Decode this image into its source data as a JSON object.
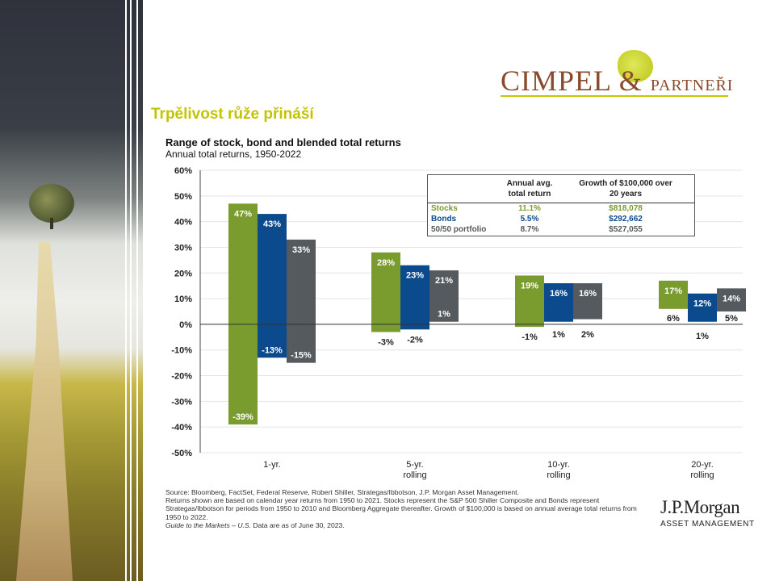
{
  "logo": {
    "brand_main": "CIMPEL",
    "brand_amp": "&",
    "brand_rest": "PARTNEŘI"
  },
  "heading": "Trpělivost růže přináší",
  "table": {
    "headers": [
      "",
      "Annual avg. total return",
      "Growth of $100,000 over 20 years"
    ],
    "header1_lines": [
      "Annual avg.",
      "total return"
    ],
    "header2_lines": [
      "Growth of $100,000 over",
      "20 years"
    ],
    "rows": [
      {
        "label": "Stocks",
        "avg": "11.1%",
        "growth": "$818,078",
        "color": "#7a9b2e"
      },
      {
        "label": "Bonds",
        "avg": "5.5%",
        "growth": "$292,662",
        "color": "#0b4a8c"
      },
      {
        "label": "50/50 portfolio",
        "avg": "8.7%",
        "growth": "$527,055",
        "color": "#555a5e"
      }
    ]
  },
  "footnote": {
    "line1": "Source: Bloomberg, FactSet, Federal Reserve, Robert Shiller, Strategas/Ibbotson, J.P. Morgan Asset Management.",
    "line2": "Returns shown are based on calendar year returns from 1950 to 2021. Stocks represent the S&P 500 Shiller Composite and Bonds represent Strategas/Ibbotson for periods from 1950 to 2010 and Bloomberg Aggregate thereafter. Growth of $100,000 is based on annual average total returns from 1950 to 2022.",
    "guide_italic": "Guide to the Markets – U.S.",
    "guide_rest": " Data are as of June 30, 2023."
  },
  "jpmorgan": {
    "name": "J.P.Morgan",
    "sub": "ASSET MANAGEMENT"
  },
  "chart_data": {
    "type": "bar",
    "subtype": "floating-range",
    "title": "Range of stock, bond and blended total returns",
    "subtitle": "Annual total returns, 1950-2022",
    "categories": [
      [
        "1-yr."
      ],
      [
        "5-yr.",
        "rolling"
      ],
      [
        "10-yr.",
        "rolling"
      ],
      [
        "20-yr.",
        "rolling"
      ]
    ],
    "series": [
      {
        "name": "Stocks",
        "color": "#7a9b2e",
        "max": [
          47,
          28,
          19,
          17
        ],
        "min": [
          -39,
          -3,
          -1,
          6
        ],
        "max_labels": [
          "47%",
          "28%",
          "19%",
          "17%"
        ],
        "min_labels": [
          "-39%",
          "-3%",
          "-1%",
          "6%"
        ]
      },
      {
        "name": "Bonds",
        "color": "#0b4a8c",
        "max": [
          43,
          23,
          16,
          12
        ],
        "min": [
          -13,
          -2,
          1,
          1
        ],
        "max_labels": [
          "43%",
          "23%",
          "16%",
          "12%"
        ],
        "min_labels": [
          "-13%",
          "-2%",
          "1%",
          "1%"
        ]
      },
      {
        "name": "50/50 portfolio",
        "color": "#555a5e",
        "max": [
          33,
          21,
          16,
          14
        ],
        "min": [
          -15,
          1,
          2,
          5
        ],
        "max_labels": [
          "33%",
          "21%",
          "16%",
          "14%"
        ],
        "min_labels": [
          "-15%",
          "1%",
          "2%",
          "5%"
        ]
      }
    ],
    "ylim": [
      -50,
      60
    ],
    "yticks": [
      "60%",
      "50%",
      "40%",
      "30%",
      "20%",
      "10%",
      "0%",
      "-10%",
      "-20%",
      "-30%",
      "-40%",
      "-50%"
    ],
    "ytick_values": [
      60,
      50,
      40,
      30,
      20,
      10,
      0,
      -10,
      -20,
      -30,
      -40,
      -50
    ],
    "grid": true
  }
}
